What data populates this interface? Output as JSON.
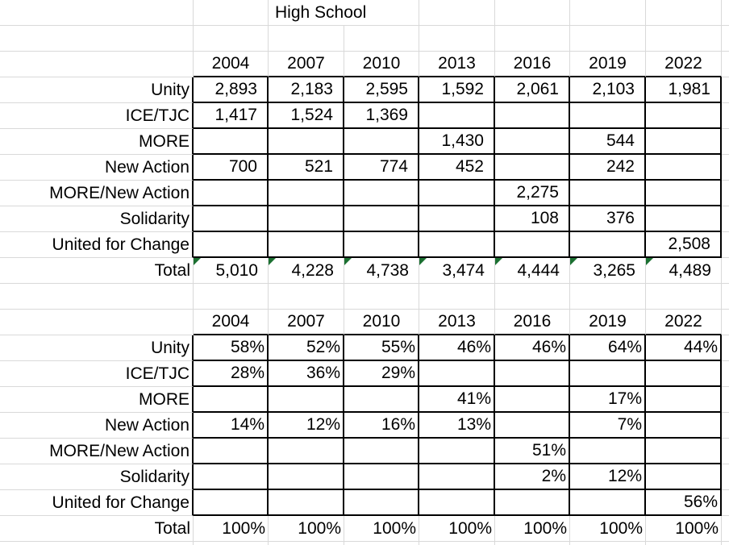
{
  "title": "High School",
  "years": [
    "2004",
    "2007",
    "2010",
    "2013",
    "2016",
    "2019",
    "2022"
  ],
  "row_labels": [
    "Unity",
    "ICE/TJC",
    "MORE",
    "New Action",
    "MORE/New Action",
    "Solidarity",
    "United for Change"
  ],
  "total_label": "Total",
  "counts": {
    "rows": [
      [
        "2,893",
        "2,183",
        "2,595",
        "1,592",
        "2,061",
        "2,103",
        "1,981"
      ],
      [
        "1,417",
        "1,524",
        "1,369",
        "",
        "",
        "",
        ""
      ],
      [
        "",
        "",
        "",
        "1,430",
        "",
        "544",
        ""
      ],
      [
        "700",
        "521",
        "774",
        "452",
        "",
        "242",
        ""
      ],
      [
        "",
        "",
        "",
        "",
        "2,275",
        "",
        ""
      ],
      [
        "",
        "",
        "",
        "",
        "108",
        "376",
        ""
      ],
      [
        "",
        "",
        "",
        "",
        "",
        "",
        "2,508"
      ]
    ],
    "total": [
      "5,010",
      "4,228",
      "4,738",
      "3,474",
      "4,444",
      "3,265",
      "4,489"
    ]
  },
  "percentages": {
    "rows": [
      [
        "58%",
        "52%",
        "55%",
        "46%",
        "46%",
        "64%",
        "44%"
      ],
      [
        "28%",
        "36%",
        "29%",
        "",
        "",
        "",
        ""
      ],
      [
        "",
        "",
        "",
        "41%",
        "",
        "17%",
        ""
      ],
      [
        "14%",
        "12%",
        "16%",
        "13%",
        "",
        "7%",
        ""
      ],
      [
        "",
        "",
        "",
        "",
        "51%",
        "",
        ""
      ],
      [
        "",
        "",
        "",
        "",
        "2%",
        "12%",
        ""
      ],
      [
        "",
        "",
        "",
        "",
        "",
        "",
        "56%"
      ]
    ],
    "total": [
      "100%",
      "100%",
      "100%",
      "100%",
      "100%",
      "100%",
      "100%"
    ]
  },
  "colors": {
    "gridline": "#d9d9d9",
    "table_border": "#000000",
    "error_indicator_green": "#1b7031",
    "background": "#ffffff",
    "text": "#000000"
  }
}
